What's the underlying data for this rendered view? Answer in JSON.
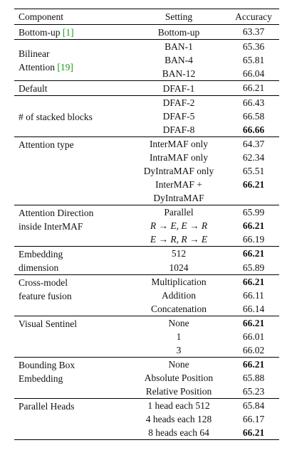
{
  "header": {
    "component": "Component",
    "setting": "Setting",
    "accuracy": "Accuracy"
  },
  "groups": [
    {
      "component": [
        "Bottom-up"
      ],
      "cite": "[1]",
      "rows": [
        {
          "setting": "Bottom-up",
          "accuracy": 63.37
        }
      ]
    },
    {
      "component": [
        "Bilinear",
        "Attention"
      ],
      "cite": "[19]",
      "rows": [
        {
          "setting": "BAN-1",
          "accuracy": 65.36
        },
        {
          "setting": "BAN-4",
          "accuracy": 65.81
        },
        {
          "setting": "BAN-12",
          "accuracy": 66.04
        }
      ]
    },
    {
      "component": [
        "Default"
      ],
      "rows": [
        {
          "setting": "DFAF-1",
          "accuracy": 66.21
        }
      ]
    },
    {
      "component": [
        "# of stacked blocks"
      ],
      "rows": [
        {
          "setting": "DFAF-2",
          "accuracy": 66.43
        },
        {
          "setting": "DFAF-5",
          "accuracy": 66.58
        },
        {
          "setting": "DFAF-8",
          "accuracy": 66.66,
          "bold": true
        }
      ]
    },
    {
      "component": [
        "Attention type"
      ],
      "rows": [
        {
          "setting": "InterMAF only",
          "accuracy": 64.37
        },
        {
          "setting": "IntraMAF only",
          "accuracy": 62.34
        },
        {
          "setting": "DyIntraMAF only",
          "accuracy": 65.51
        },
        {
          "setting": [
            "InterMAF +",
            "DyIntraMAF"
          ],
          "accuracy": 66.21,
          "bold": true
        }
      ]
    },
    {
      "component": [
        "Attention Direction",
        "inside InterMAF"
      ],
      "rows": [
        {
          "setting": "Parallel",
          "accuracy": 65.99
        },
        {
          "setting": "R → E, E → R",
          "accuracy": 66.21,
          "bold": true,
          "math": true
        },
        {
          "setting": "E → R, R → E",
          "accuracy": 66.19,
          "math": true
        }
      ]
    },
    {
      "component": [
        "Embedding",
        "dimension"
      ],
      "rows": [
        {
          "setting": "512",
          "accuracy": 66.21,
          "bold": true
        },
        {
          "setting": "1024",
          "accuracy": 65.89
        }
      ]
    },
    {
      "component": [
        "Cross-model",
        "feature fusion"
      ],
      "rows": [
        {
          "setting": "Multiplication",
          "accuracy": 66.21,
          "bold": true
        },
        {
          "setting": "Addition",
          "accuracy": 66.11
        },
        {
          "setting": "Concatenation",
          "accuracy": 66.14
        }
      ]
    },
    {
      "component": [
        "Visual Sentinel"
      ],
      "rows": [
        {
          "setting": "None",
          "accuracy": 66.21,
          "bold": true
        },
        {
          "setting": "1",
          "accuracy": 66.01
        },
        {
          "setting": "3",
          "accuracy": 66.02
        }
      ]
    },
    {
      "component": [
        "Bounding Box",
        "Embedding"
      ],
      "rows": [
        {
          "setting": "None",
          "accuracy": 66.21,
          "bold": true
        },
        {
          "setting": "Absolute Position",
          "accuracy": 65.88
        },
        {
          "setting": "Relative Position",
          "accuracy": 65.23
        }
      ]
    },
    {
      "component": [
        "Parallel Heads"
      ],
      "rows": [
        {
          "setting": "1 head each 512",
          "accuracy": 65.84
        },
        {
          "setting": "4 heads each 128",
          "accuracy": 66.17
        },
        {
          "setting": "8 heads each 64",
          "accuracy": 66.21,
          "bold": true
        }
      ]
    }
  ]
}
